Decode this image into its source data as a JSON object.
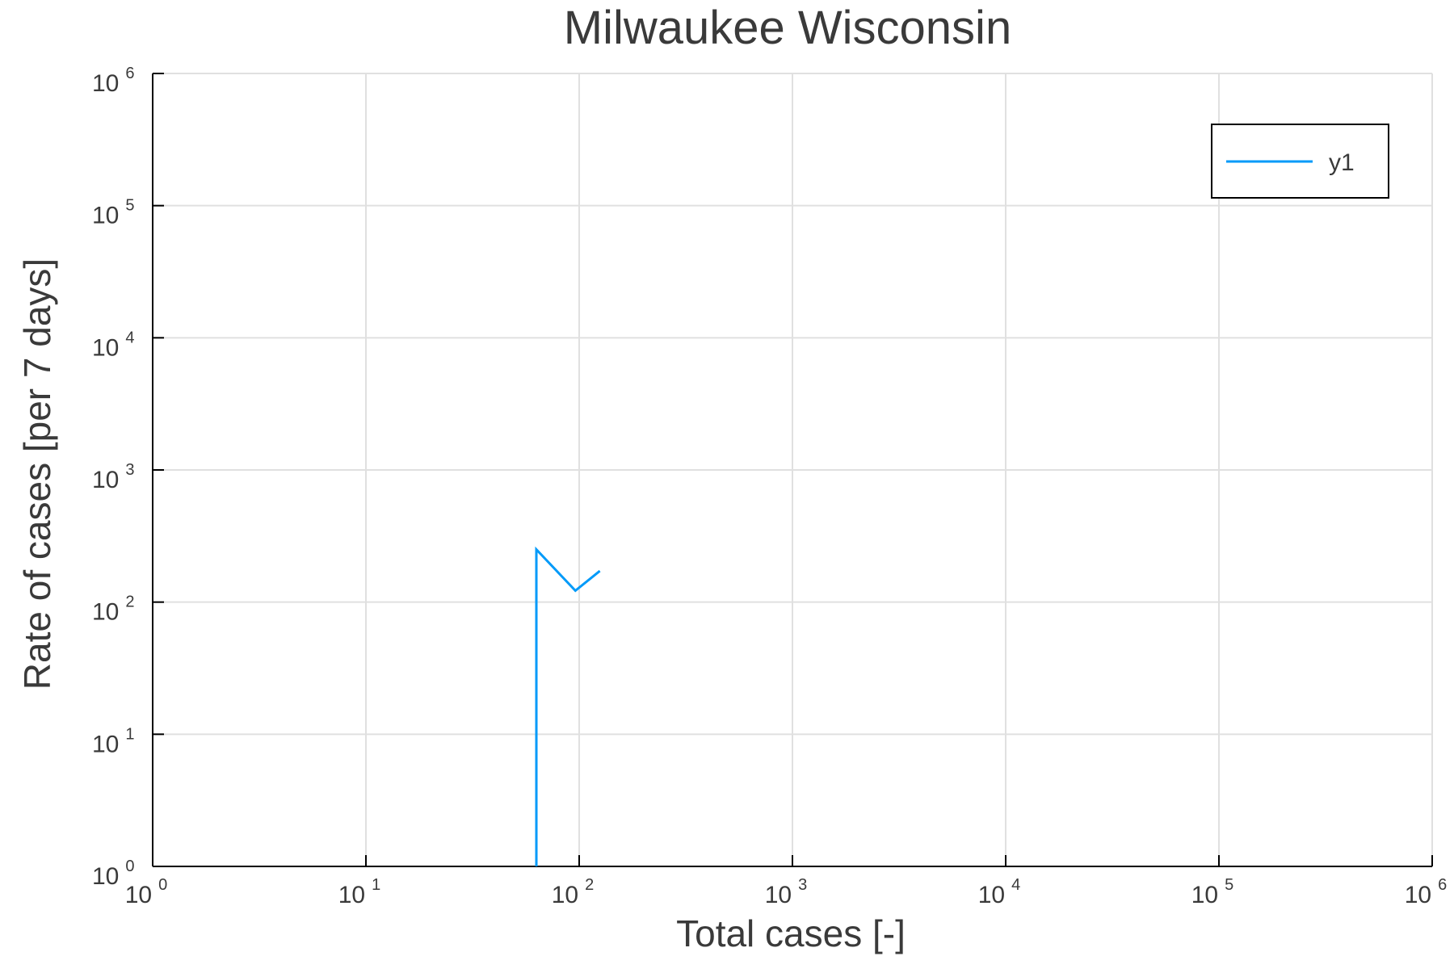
{
  "chart_data": {
    "type": "line",
    "title": "Milwaukee Wisconsin",
    "xlabel": "Total cases [-]",
    "ylabel": "Rate of cases [per 7 days]",
    "xscale": "log",
    "yscale": "log",
    "xlim": [
      1,
      1000000
    ],
    "ylim": [
      1,
      1000000
    ],
    "grid": true,
    "legend_position": "top-right",
    "x_ticks": [
      {
        "value": 1,
        "base": "10",
        "exp": "0"
      },
      {
        "value": 10,
        "base": "10",
        "exp": "1"
      },
      {
        "value": 100,
        "base": "10",
        "exp": "2"
      },
      {
        "value": 1000,
        "base": "10",
        "exp": "3"
      },
      {
        "value": 10000,
        "base": "10",
        "exp": "4"
      },
      {
        "value": 100000,
        "base": "10",
        "exp": "5"
      },
      {
        "value": 1000000,
        "base": "10",
        "exp": "6"
      }
    ],
    "y_ticks": [
      {
        "value": 1,
        "base": "10",
        "exp": "0"
      },
      {
        "value": 10,
        "base": "10",
        "exp": "1"
      },
      {
        "value": 100,
        "base": "10",
        "exp": "2"
      },
      {
        "value": 1000,
        "base": "10",
        "exp": "3"
      },
      {
        "value": 10000,
        "base": "10",
        "exp": "4"
      },
      {
        "value": 100000,
        "base": "10",
        "exp": "5"
      },
      {
        "value": 1000000,
        "base": "10",
        "exp": "6"
      }
    ],
    "series": [
      {
        "name": "y1",
        "color": "#009af9",
        "x": [
          63,
          63,
          96,
          125
        ],
        "y": [
          1,
          250,
          122,
          172
        ]
      }
    ]
  }
}
